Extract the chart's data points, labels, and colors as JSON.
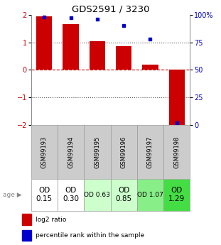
{
  "title": "GDS2591 / 3230",
  "samples": [
    "GSM99193",
    "GSM99194",
    "GSM99195",
    "GSM99196",
    "GSM99197",
    "GSM99198"
  ],
  "log2_ratio": [
    1.95,
    1.65,
    1.05,
    0.85,
    0.2,
    -2.1
  ],
  "percentile_rank": [
    98,
    97,
    96,
    90,
    78,
    2
  ],
  "bar_color": "#cc0000",
  "dot_color": "#0000cc",
  "ylim": [
    -2,
    2
  ],
  "yticks_left": [
    -2,
    -1,
    0,
    1,
    2
  ],
  "yticks_right_vals": [
    0,
    25,
    50,
    75,
    100
  ],
  "yticks_right_labels": [
    "0",
    "25",
    "50",
    "75",
    "100%"
  ],
  "age_labels": [
    "OD\n0.15",
    "OD\n0.30",
    "OD 0.63",
    "OD\n0.85",
    "OD 1.07",
    "OD\n1.29"
  ],
  "age_bg_colors": [
    "#ffffff",
    "#ffffff",
    "#ccffcc",
    "#ccffcc",
    "#88ee88",
    "#44dd44"
  ],
  "age_fontsize": [
    7.5,
    7.5,
    6.5,
    7.5,
    6.5,
    7.5
  ],
  "legend_red_label": "log2 ratio",
  "legend_blue_label": "percentile rank within the sample",
  "left_tick_color": "#cc0000",
  "right_tick_color": "#0000cc",
  "sample_bg_color": "#cccccc",
  "sample_border_color": "#999999"
}
